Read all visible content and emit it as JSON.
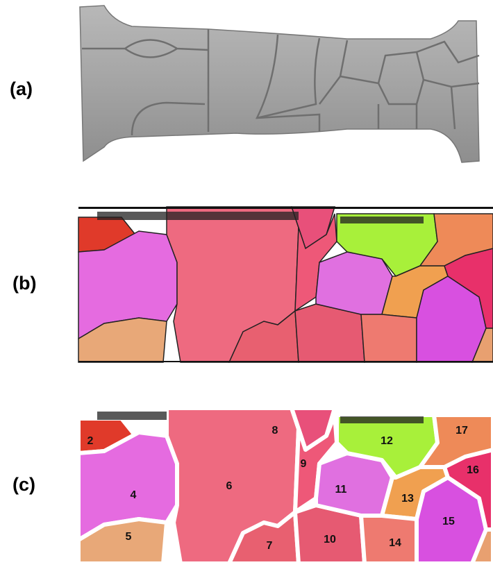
{
  "panels": [
    {
      "label": "(a)"
    },
    {
      "label": "(b)"
    },
    {
      "label": "(c)",
      "grains": [
        "2",
        "4",
        "5",
        "6",
        "7",
        "8",
        "9",
        "10",
        "11",
        "12",
        "13",
        "14",
        "15",
        "16",
        "17"
      ]
    }
  ]
}
